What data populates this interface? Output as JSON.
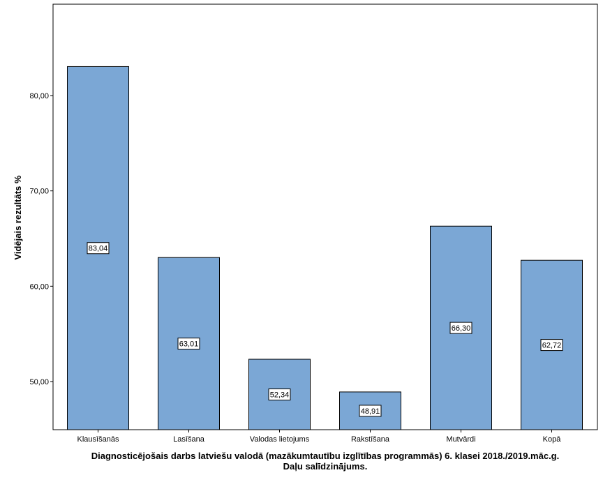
{
  "chart_data": {
    "type": "bar",
    "categories": [
      "Klausīšanās",
      "Lasīšana",
      "Valodas lietojums",
      "Rakstīšana",
      "Mutvārdi",
      "Kopā"
    ],
    "values": [
      83.04,
      63.01,
      52.34,
      48.91,
      66.3,
      62.72
    ],
    "data_labels": [
      "83,04",
      "63,01",
      "52,34",
      "48,91",
      "66,30",
      "62,72"
    ],
    "ylabel": "Vidējais rezultāts %",
    "xlabel_line1": "Diagnosticējošais darbs latviešu valodā (mazākumtautību izglītības programmās) 6. klasei 2018./2019.māc.g.",
    "xlabel_line2": "Daļu salīdzinājums.",
    "yticks": [
      50,
      60,
      70,
      80
    ],
    "ytick_labels": [
      "50,00",
      "60,00",
      "70,00",
      "80,00"
    ],
    "ylim": [
      45,
      90
    ],
    "grid": false,
    "bar_color": "#7BA7D5"
  }
}
